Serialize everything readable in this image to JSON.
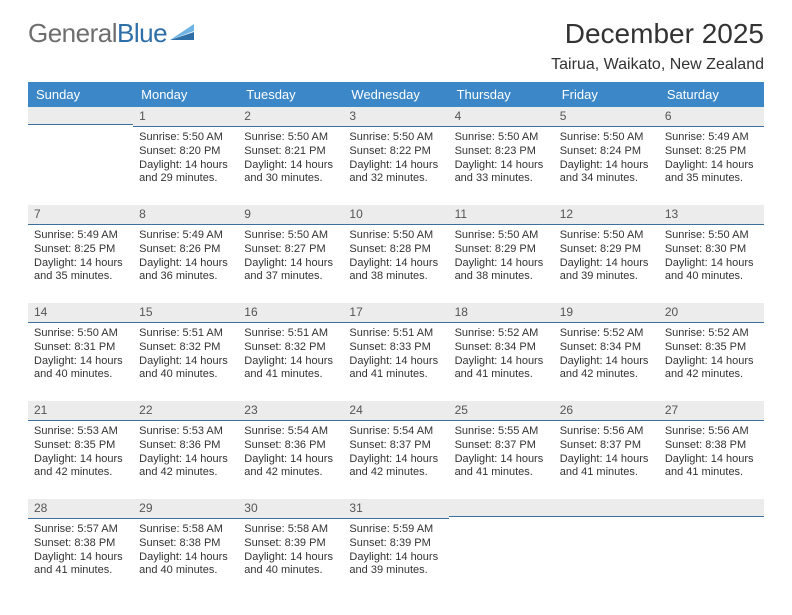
{
  "brand": {
    "part1": "General",
    "part2": "Blue"
  },
  "title": "December 2025",
  "subtitle": "Tairua, Waikato, New Zealand",
  "dow": [
    "Sunday",
    "Monday",
    "Tuesday",
    "Wednesday",
    "Thursday",
    "Friday",
    "Saturday"
  ],
  "colors": {
    "header_bg": "#3b87c8",
    "header_fg": "#ffffff",
    "band_bg": "#ececec",
    "band_border": "#3b6f9e",
    "text": "#333333",
    "logo_gray": "#6e6e6e",
    "logo_blue": "#2f6fa7"
  },
  "first_weekday_index": 1,
  "days": [
    {
      "n": 1,
      "sunrise": "5:50 AM",
      "sunset": "8:20 PM",
      "daylight": "14 hours and 29 minutes."
    },
    {
      "n": 2,
      "sunrise": "5:50 AM",
      "sunset": "8:21 PM",
      "daylight": "14 hours and 30 minutes."
    },
    {
      "n": 3,
      "sunrise": "5:50 AM",
      "sunset": "8:22 PM",
      "daylight": "14 hours and 32 minutes."
    },
    {
      "n": 4,
      "sunrise": "5:50 AM",
      "sunset": "8:23 PM",
      "daylight": "14 hours and 33 minutes."
    },
    {
      "n": 5,
      "sunrise": "5:50 AM",
      "sunset": "8:24 PM",
      "daylight": "14 hours and 34 minutes."
    },
    {
      "n": 6,
      "sunrise": "5:49 AM",
      "sunset": "8:25 PM",
      "daylight": "14 hours and 35 minutes."
    },
    {
      "n": 7,
      "sunrise": "5:49 AM",
      "sunset": "8:25 PM",
      "daylight": "14 hours and 35 minutes."
    },
    {
      "n": 8,
      "sunrise": "5:49 AM",
      "sunset": "8:26 PM",
      "daylight": "14 hours and 36 minutes."
    },
    {
      "n": 9,
      "sunrise": "5:50 AM",
      "sunset": "8:27 PM",
      "daylight": "14 hours and 37 minutes."
    },
    {
      "n": 10,
      "sunrise": "5:50 AM",
      "sunset": "8:28 PM",
      "daylight": "14 hours and 38 minutes."
    },
    {
      "n": 11,
      "sunrise": "5:50 AM",
      "sunset": "8:29 PM",
      "daylight": "14 hours and 38 minutes."
    },
    {
      "n": 12,
      "sunrise": "5:50 AM",
      "sunset": "8:29 PM",
      "daylight": "14 hours and 39 minutes."
    },
    {
      "n": 13,
      "sunrise": "5:50 AM",
      "sunset": "8:30 PM",
      "daylight": "14 hours and 40 minutes."
    },
    {
      "n": 14,
      "sunrise": "5:50 AM",
      "sunset": "8:31 PM",
      "daylight": "14 hours and 40 minutes."
    },
    {
      "n": 15,
      "sunrise": "5:51 AM",
      "sunset": "8:32 PM",
      "daylight": "14 hours and 40 minutes."
    },
    {
      "n": 16,
      "sunrise": "5:51 AM",
      "sunset": "8:32 PM",
      "daylight": "14 hours and 41 minutes."
    },
    {
      "n": 17,
      "sunrise": "5:51 AM",
      "sunset": "8:33 PM",
      "daylight": "14 hours and 41 minutes."
    },
    {
      "n": 18,
      "sunrise": "5:52 AM",
      "sunset": "8:34 PM",
      "daylight": "14 hours and 41 minutes."
    },
    {
      "n": 19,
      "sunrise": "5:52 AM",
      "sunset": "8:34 PM",
      "daylight": "14 hours and 42 minutes."
    },
    {
      "n": 20,
      "sunrise": "5:52 AM",
      "sunset": "8:35 PM",
      "daylight": "14 hours and 42 minutes."
    },
    {
      "n": 21,
      "sunrise": "5:53 AM",
      "sunset": "8:35 PM",
      "daylight": "14 hours and 42 minutes."
    },
    {
      "n": 22,
      "sunrise": "5:53 AM",
      "sunset": "8:36 PM",
      "daylight": "14 hours and 42 minutes."
    },
    {
      "n": 23,
      "sunrise": "5:54 AM",
      "sunset": "8:36 PM",
      "daylight": "14 hours and 42 minutes."
    },
    {
      "n": 24,
      "sunrise": "5:54 AM",
      "sunset": "8:37 PM",
      "daylight": "14 hours and 42 minutes."
    },
    {
      "n": 25,
      "sunrise": "5:55 AM",
      "sunset": "8:37 PM",
      "daylight": "14 hours and 41 minutes."
    },
    {
      "n": 26,
      "sunrise": "5:56 AM",
      "sunset": "8:37 PM",
      "daylight": "14 hours and 41 minutes."
    },
    {
      "n": 27,
      "sunrise": "5:56 AM",
      "sunset": "8:38 PM",
      "daylight": "14 hours and 41 minutes."
    },
    {
      "n": 28,
      "sunrise": "5:57 AM",
      "sunset": "8:38 PM",
      "daylight": "14 hours and 41 minutes."
    },
    {
      "n": 29,
      "sunrise": "5:58 AM",
      "sunset": "8:38 PM",
      "daylight": "14 hours and 40 minutes."
    },
    {
      "n": 30,
      "sunrise": "5:58 AM",
      "sunset": "8:39 PM",
      "daylight": "14 hours and 40 minutes."
    },
    {
      "n": 31,
      "sunrise": "5:59 AM",
      "sunset": "8:39 PM",
      "daylight": "14 hours and 39 minutes."
    }
  ],
  "labels": {
    "sunrise": "Sunrise:",
    "sunset": "Sunset:",
    "daylight": "Daylight:"
  }
}
